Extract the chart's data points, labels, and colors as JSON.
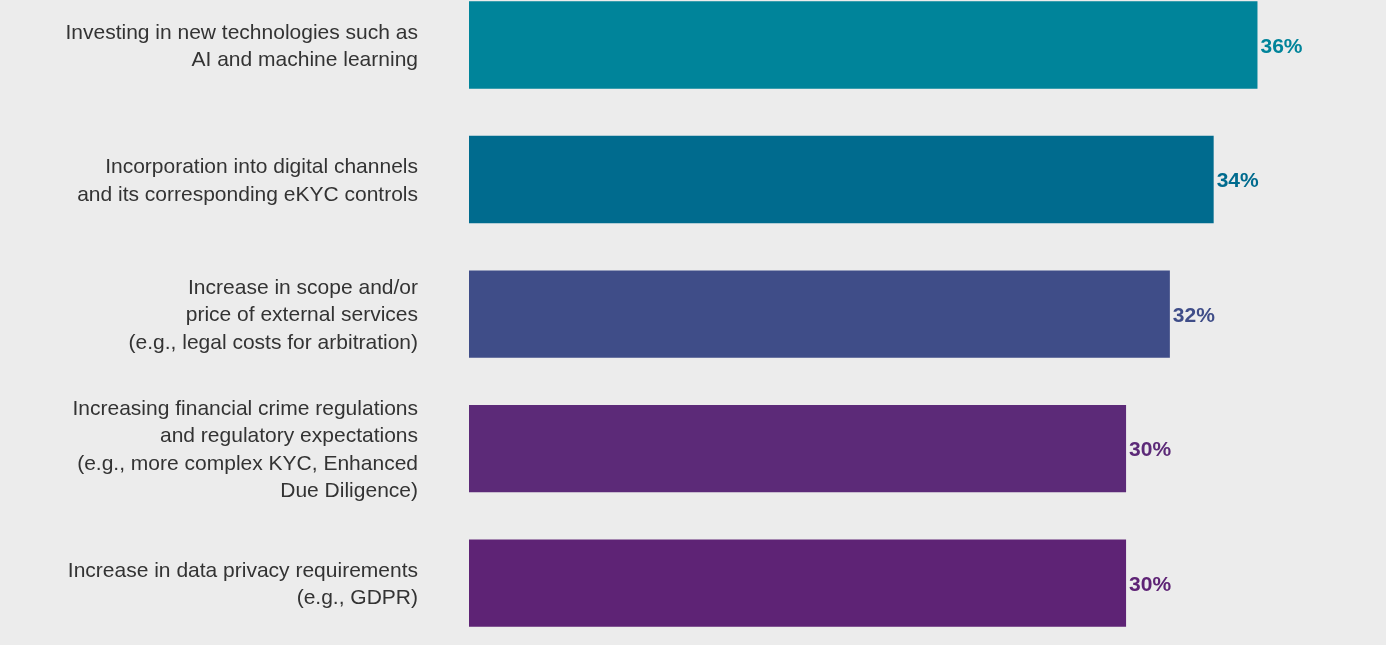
{
  "chart_data": {
    "type": "bar",
    "orientation": "horizontal",
    "categories": [
      "Investing in new technologies such as\nAI and machine learning",
      "Incorporation into digital channels\nand its corresponding eKYC controls",
      "Increase in scope and/or\nprice of external services\n(e.g., legal costs for arbitration)",
      "Increasing financial crime regulations\nand regulatory expectations\n(e.g., more complex KYC, Enhanced\nDue Diligence)",
      "Increase in data privacy requirements\n(e.g., GDPR)"
    ],
    "values": [
      36,
      34,
      32,
      30,
      30
    ],
    "value_labels": [
      "36%",
      "34%",
      "32%",
      "30%",
      "30%"
    ],
    "colors": [
      "#00849a",
      "#006b8e",
      "#3f4d88",
      "#5c2a78",
      "#5e2375"
    ],
    "grid": false,
    "legend": false,
    "tick_labels": "y"
  }
}
